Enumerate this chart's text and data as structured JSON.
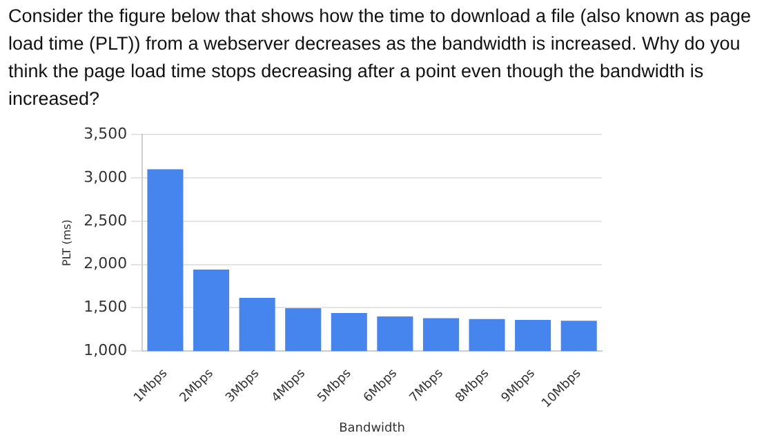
{
  "chart_data": {
    "type": "bar",
    "title": "Consider the figure below that shows how the time to download a file (also known as page load time (PLT)) from a webserver decreases as the bandwidth is increased. Why do you think the page load time stops decreasing after a point even though the bandwidth is increased?",
    "xlabel": "Bandwidth",
    "ylabel": "PLT (ms)",
    "categories": [
      "1Mbps",
      "2Mbps",
      "3Mbps",
      "4Mbps",
      "5Mbps",
      "6Mbps",
      "7Mbps",
      "8Mbps",
      "9Mbps",
      "10Mbps"
    ],
    "values": [
      3100,
      1940,
      1615,
      1495,
      1440,
      1400,
      1380,
      1370,
      1360,
      1350
    ],
    "color": "#4684ee",
    "ylim": [
      1000,
      3500
    ],
    "yticks": [
      {
        "value": 1000,
        "label": "1,000"
      },
      {
        "value": 1500,
        "label": "1,500"
      },
      {
        "value": 2000,
        "label": "2,000"
      },
      {
        "value": 2500,
        "label": "2,500"
      },
      {
        "value": 3000,
        "label": "3,000"
      },
      {
        "value": 3500,
        "label": "3,500"
      }
    ],
    "grid": "y",
    "legend": false
  }
}
